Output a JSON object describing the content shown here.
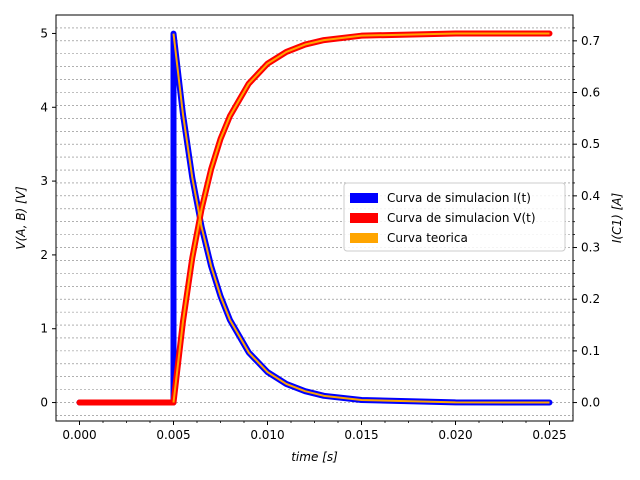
{
  "chart_data": {
    "type": "line",
    "xlabel": "time [s]",
    "ylabel_left": "V(A, B) [V]",
    "ylabel_right": "I(C1) [A]",
    "xlim": [
      -0.00125,
      0.02625
    ],
    "ylim_left": [
      -0.25,
      5.25
    ],
    "ylim_right": [
      -0.0357,
      0.75
    ],
    "x_ticks": [
      0.0,
      0.005,
      0.01,
      0.015,
      0.02,
      0.025
    ],
    "x_tick_labels": [
      "0.000",
      "0.005",
      "0.010",
      "0.015",
      "0.020",
      "0.025"
    ],
    "y_left_ticks": [
      0,
      1,
      2,
      3,
      4,
      5
    ],
    "y_left_tick_labels": [
      "0",
      "1",
      "2",
      "3",
      "4",
      "5"
    ],
    "y_right_ticks": [
      0.0,
      0.1,
      0.2,
      0.3,
      0.4,
      0.5,
      0.6,
      0.7
    ],
    "y_right_tick_labels": [
      "0.0",
      "0.1",
      "0.2",
      "0.3",
      "0.4",
      "0.5",
      "0.6",
      "0.7"
    ],
    "grid": "horizontal dashed, right-axis minor ticks",
    "legend_position": "center-right",
    "series": [
      {
        "name": "Curva de simulacion I(t)",
        "axis": "right",
        "color": "#0000ff",
        "x": [
          0.0,
          0.005,
          0.005,
          0.0055,
          0.006,
          0.0065,
          0.007,
          0.0075,
          0.008,
          0.009,
          0.01,
          0.011,
          0.012,
          0.013,
          0.015,
          0.02,
          0.025
        ],
        "values": [
          0.0,
          0.0,
          0.714,
          0.559,
          0.435,
          0.339,
          0.264,
          0.206,
          0.16,
          0.097,
          0.059,
          0.036,
          0.022,
          0.013,
          0.005,
          0.0003,
          0.0
        ]
      },
      {
        "name": "Curva de simulacion V(t)",
        "axis": "left",
        "color": "#ff0000",
        "x": [
          0.0,
          0.005,
          0.0055,
          0.006,
          0.0065,
          0.007,
          0.0075,
          0.008,
          0.009,
          0.01,
          0.011,
          0.012,
          0.013,
          0.015,
          0.02,
          0.025
        ],
        "values": [
          0.0,
          0.0,
          1.09,
          1.96,
          2.63,
          3.16,
          3.57,
          3.88,
          4.32,
          4.59,
          4.75,
          4.85,
          4.91,
          4.97,
          5.0,
          5.0
        ]
      },
      {
        "name": "Curva teorica",
        "axis": "both",
        "color": "#ffa500",
        "x": [
          0.005,
          0.0055,
          0.006,
          0.0065,
          0.007,
          0.0075,
          0.008,
          0.009,
          0.01,
          0.011,
          0.012,
          0.013,
          0.015,
          0.02,
          0.025
        ],
        "values_left": [
          0.0,
          1.09,
          1.96,
          2.63,
          3.16,
          3.57,
          3.88,
          4.32,
          4.59,
          4.75,
          4.85,
          4.91,
          4.97,
          5.0,
          5.0
        ],
        "values_right": [
          0.714,
          0.559,
          0.435,
          0.339,
          0.264,
          0.206,
          0.16,
          0.097,
          0.059,
          0.036,
          0.022,
          0.013,
          0.005,
          0.0003,
          0.0
        ]
      }
    ],
    "legend": [
      {
        "label": "Curva de simulacion I(t)",
        "color": "#0000ff"
      },
      {
        "label": "Curva de simulacion V(t)",
        "color": "#ff0000"
      },
      {
        "label": "Curva teorica",
        "color": "#ffa500"
      }
    ]
  }
}
